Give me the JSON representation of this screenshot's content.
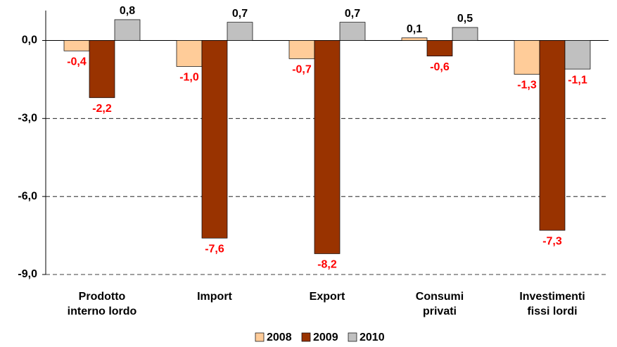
{
  "chart_data": {
    "type": "bar",
    "categories": [
      "Prodotto\ninterno lordo",
      "Import",
      "Export",
      "Consumi\nprivati",
      "Investimenti\nfissi lordi"
    ],
    "series": [
      {
        "name": "2008",
        "color": "#FFCC99",
        "values": [
          -0.4,
          -1.0,
          -0.7,
          0.1,
          -1.3
        ],
        "value_labels": [
          "-0,4",
          "-1,0",
          "-0,7",
          "0,1",
          "-1,3"
        ]
      },
      {
        "name": "2009",
        "color": "#993300",
        "values": [
          -2.2,
          -7.6,
          -8.2,
          -0.6,
          -7.3
        ],
        "value_labels": [
          "-2,2",
          "-7,6",
          "-8,2",
          "-0,6",
          "-7,3"
        ]
      },
      {
        "name": "2010",
        "color": "#C0C0C0",
        "values": [
          0.8,
          0.7,
          0.7,
          0.5,
          -1.1
        ],
        "value_labels": [
          "0,8",
          "0,7",
          "0,7",
          "0,5",
          "-1,1"
        ]
      }
    ],
    "ylim": [
      -9,
      1.15
    ],
    "yticks": [
      {
        "value": -9,
        "label": "-9,0"
      },
      {
        "value": -6,
        "label": "-6,0"
      },
      {
        "value": -3,
        "label": "-3,0"
      },
      {
        "value": 0,
        "label": "0,0"
      }
    ],
    "grid": true,
    "legend": "bottom"
  }
}
